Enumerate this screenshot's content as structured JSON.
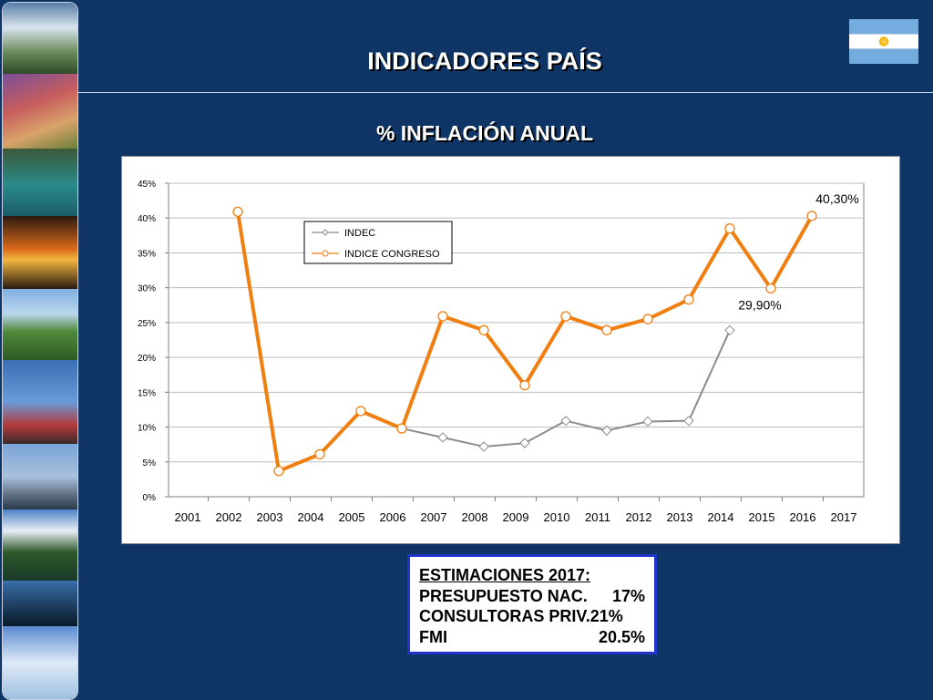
{
  "header": {
    "title": "INDICADORES PAÍS",
    "subtitle": "% INFLACIÓN ANUAL"
  },
  "colors": {
    "background": "#0e3566",
    "indec": "#8c8c8c",
    "congreso": "#f07f12",
    "estimates_border": "#2233cc"
  },
  "chart_data": {
    "type": "line",
    "x": [
      "2001",
      "2002",
      "2003",
      "2004",
      "2005",
      "2006",
      "2007",
      "2008",
      "2009",
      "2010",
      "2011",
      "2012",
      "2013",
      "2014",
      "2015",
      "2016",
      "2017"
    ],
    "y_ticks": [
      "0%",
      "5%",
      "10%",
      "15%",
      "20%",
      "25%",
      "30%",
      "35%",
      "40%",
      "45%"
    ],
    "ylim": [
      0,
      45
    ],
    "grid": true,
    "legend": "upper-left",
    "series": [
      {
        "name": "INDEC",
        "color": "#8c8c8c",
        "marker": "diamond",
        "values": [
          null,
          null,
          null,
          null,
          null,
          9.8,
          8.5,
          7.2,
          7.7,
          10.9,
          9.5,
          10.8,
          10.9,
          23.9,
          null,
          null,
          null
        ]
      },
      {
        "name": "INDICE CONGRESO",
        "color": "#f07f12",
        "marker": "circle",
        "values": [
          null,
          40.9,
          3.7,
          6.1,
          12.3,
          9.8,
          25.9,
          23.9,
          16.0,
          25.9,
          23.9,
          25.5,
          28.3,
          38.5,
          29.9,
          40.3,
          null
        ]
      }
    ],
    "annotations": [
      {
        "text": "40,30%",
        "x": "2016",
        "y": 40.3
      },
      {
        "text": "29,90%",
        "x": "2015",
        "y": 29.9
      }
    ]
  },
  "estimates": {
    "heading": "ESTIMACIONES 2017:",
    "rows": [
      {
        "label": "PRESUPUESTO NAC.",
        "value": "17%"
      },
      {
        "label": "CONSULTORAS PRIV.",
        "value": "21%"
      },
      {
        "label": "FMI",
        "value": "20.5%"
      }
    ]
  }
}
